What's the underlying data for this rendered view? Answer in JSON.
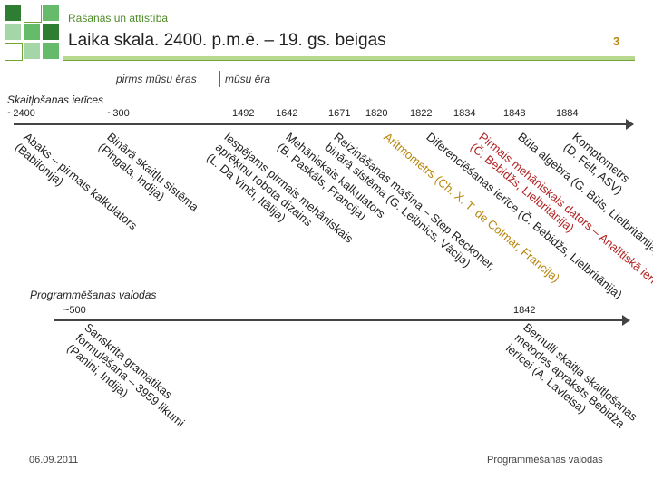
{
  "header": {
    "breadcrumb": "Rašanās un attīstība",
    "title": "Laika skala. 2400. p.m.ē. – 19. gs. beigas",
    "slide_number": "3",
    "grid_colors": [
      "#2e7d32",
      "#ffffff",
      "#66bb6a",
      "#a5d6a7",
      "#66bb6a",
      "#2e7d32",
      "#ffffff",
      "#a5d6a7",
      "#66bb6a"
    ]
  },
  "eras": {
    "before": "pirms mūsu ēras",
    "after": "mūsu ēra"
  },
  "counting": {
    "label": "Skaitļošanas ierīces",
    "years": [
      "~2400",
      "~300",
      "1492",
      "1642",
      "1671",
      "1820",
      "1822",
      "1834",
      "1848",
      "1884"
    ],
    "events": [
      {
        "lines": [
          "Abaks – pirmais kalkulators",
          "(Babilonija)"
        ],
        "color": "#222222"
      },
      {
        "lines": [
          "Binārā skaitļu sistēma",
          "(Pingala, Indija)"
        ],
        "color": "#222222"
      },
      {
        "lines": [
          "Iespējams pirmais mehāniskais",
          "aprēķinu robota dizains",
          "(L. Da Vinči, Itālija)"
        ],
        "color": "#222222"
      },
      {
        "lines": [
          "Mehāniskais kalkulators",
          "(B. Paskāls, Francija)"
        ],
        "color": "#222222"
      },
      {
        "lines": [
          "Reizināšanas mašīna – Step Reckoner,",
          "binārā sistēma (G. Leibnics, Vācija)"
        ],
        "color": "#222222"
      },
      {
        "lines": [
          "Aritmometrs (Ch. X. T. de Colmar, Francija)"
        ],
        "color": "#b8860b"
      },
      {
        "lines": [
          "Diferenciēšanas ierīce (Č. Bebidžs, Lielbritānija)"
        ],
        "color": "#222222"
      },
      {
        "lines": [
          "Pirmais mehāniskais dators – Analītiskā ierīce",
          "(Č. Bebidžs, Lielbritānija)"
        ],
        "color": "#b22222"
      },
      {
        "lines": [
          "Būla algebra (G. Būls, Lielbritānija)"
        ],
        "color": "#222222"
      },
      {
        "lines": [
          "Komptometrs",
          "(D. Felt, ASV)"
        ],
        "color": "#222222"
      }
    ]
  },
  "programming": {
    "label": "Programmēšanas valodas",
    "years": [
      "~500",
      "1842"
    ],
    "events": [
      {
        "lines": [
          "Sanskrita gramatikas",
          "formulēšana – 3959 likumi",
          "(Panini, Indija)"
        ],
        "color": "#222222"
      },
      {
        "lines": [
          "Bernulli skaitļa skaitļošanas",
          "metodes apraksts Bebidža",
          "ierīcei (A. Lavleisa)"
        ],
        "color": "#222222"
      }
    ]
  },
  "footer": {
    "date": "06.09.2011",
    "topic": "Programmēšanas valodas"
  }
}
